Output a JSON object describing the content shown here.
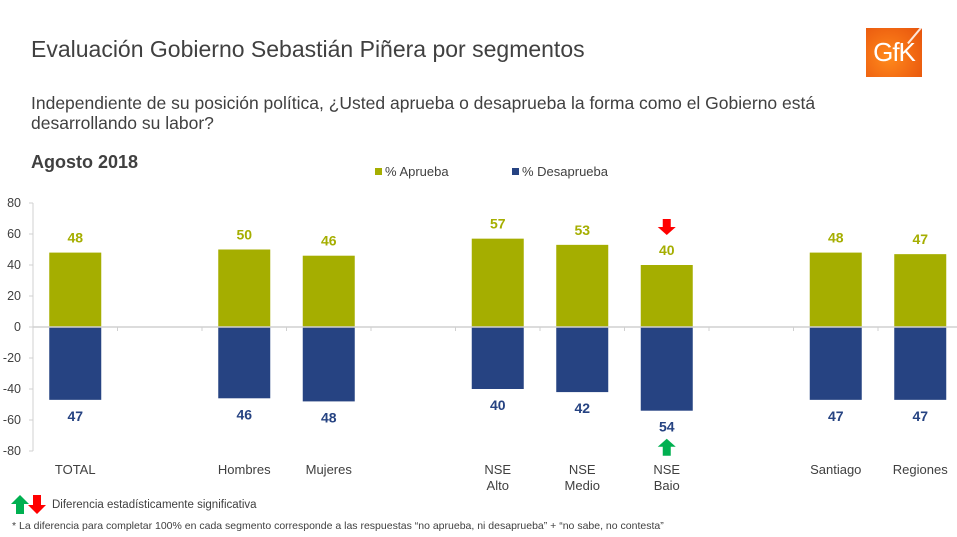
{
  "header": {
    "title": "Evaluación Gobierno Sebastián Piñera por segmentos",
    "question": "Independiente de su posición política, ¿Usted aprueba o desaprueba la forma como el Gobierno está desarrollando su labor?",
    "period": "Agosto 2018",
    "logo_text": "GfK"
  },
  "colors": {
    "approve": "#a5ae00",
    "disapprove": "#264382",
    "up_arrow": "#00b050",
    "down_arrow": "#ff0000",
    "axis": "#d0d0d0",
    "text": "#404040"
  },
  "chart_data": {
    "type": "bar",
    "title": "Evaluación Gobierno Sebastián Piñera por segmentos",
    "subtitle": "Agosto 2018",
    "xlabel": "",
    "ylabel": "",
    "ylim": [
      -80,
      80
    ],
    "yticks": [
      80,
      60,
      40,
      20,
      0,
      -20,
      -40,
      -60,
      -80
    ],
    "grid": false,
    "legend_position": "top-center",
    "categories": [
      "TOTAL",
      "",
      "Hombres",
      "Mujeres",
      "",
      "NSE Alto",
      "NSE Medio",
      "NSE Bajo",
      "",
      "Santiago",
      "Regiones"
    ],
    "category_lines": [
      [
        "TOTAL"
      ],
      [],
      [
        "Hombres"
      ],
      [
        "Mujeres"
      ],
      [],
      [
        "NSE",
        "Alto"
      ],
      [
        "NSE",
        "Medio"
      ],
      [
        "NSE",
        "Bajo"
      ],
      [],
      [
        "Santiago"
      ],
      [
        "Regiones"
      ]
    ],
    "series": [
      {
        "name": "% Aprueba",
        "values": [
          48,
          null,
          50,
          46,
          null,
          57,
          53,
          40,
          null,
          48,
          47
        ]
      },
      {
        "name": "% Desaprueba",
        "values": [
          -47,
          null,
          -46,
          -48,
          null,
          -40,
          -42,
          -54,
          null,
          -47,
          -47
        ]
      }
    ],
    "data_labels": {
      "approve": [
        "48",
        "",
        "50",
        "46",
        "",
        "57",
        "53",
        "40",
        "",
        "48",
        "47"
      ],
      "disapprove": [
        "47",
        "",
        "46",
        "48",
        "",
        "40",
        "42",
        "54",
        "",
        "47",
        "47"
      ]
    },
    "annotations": [
      {
        "category": "NSE Bajo",
        "series": "% Aprueba",
        "marker": "down-arrow",
        "meaning": "significant decrease"
      },
      {
        "category": "NSE Bajo",
        "series": "% Desaprueba",
        "marker": "up-arrow",
        "meaning": "significant increase"
      }
    ]
  },
  "footer": {
    "significance_label": "Diferencia estadísticamente significativa",
    "note": "* La diferencia para completar 100% en cada segmento corresponde a las respuestas “no aprueba, ni desaprueba” + “no sabe, no contesta”"
  }
}
